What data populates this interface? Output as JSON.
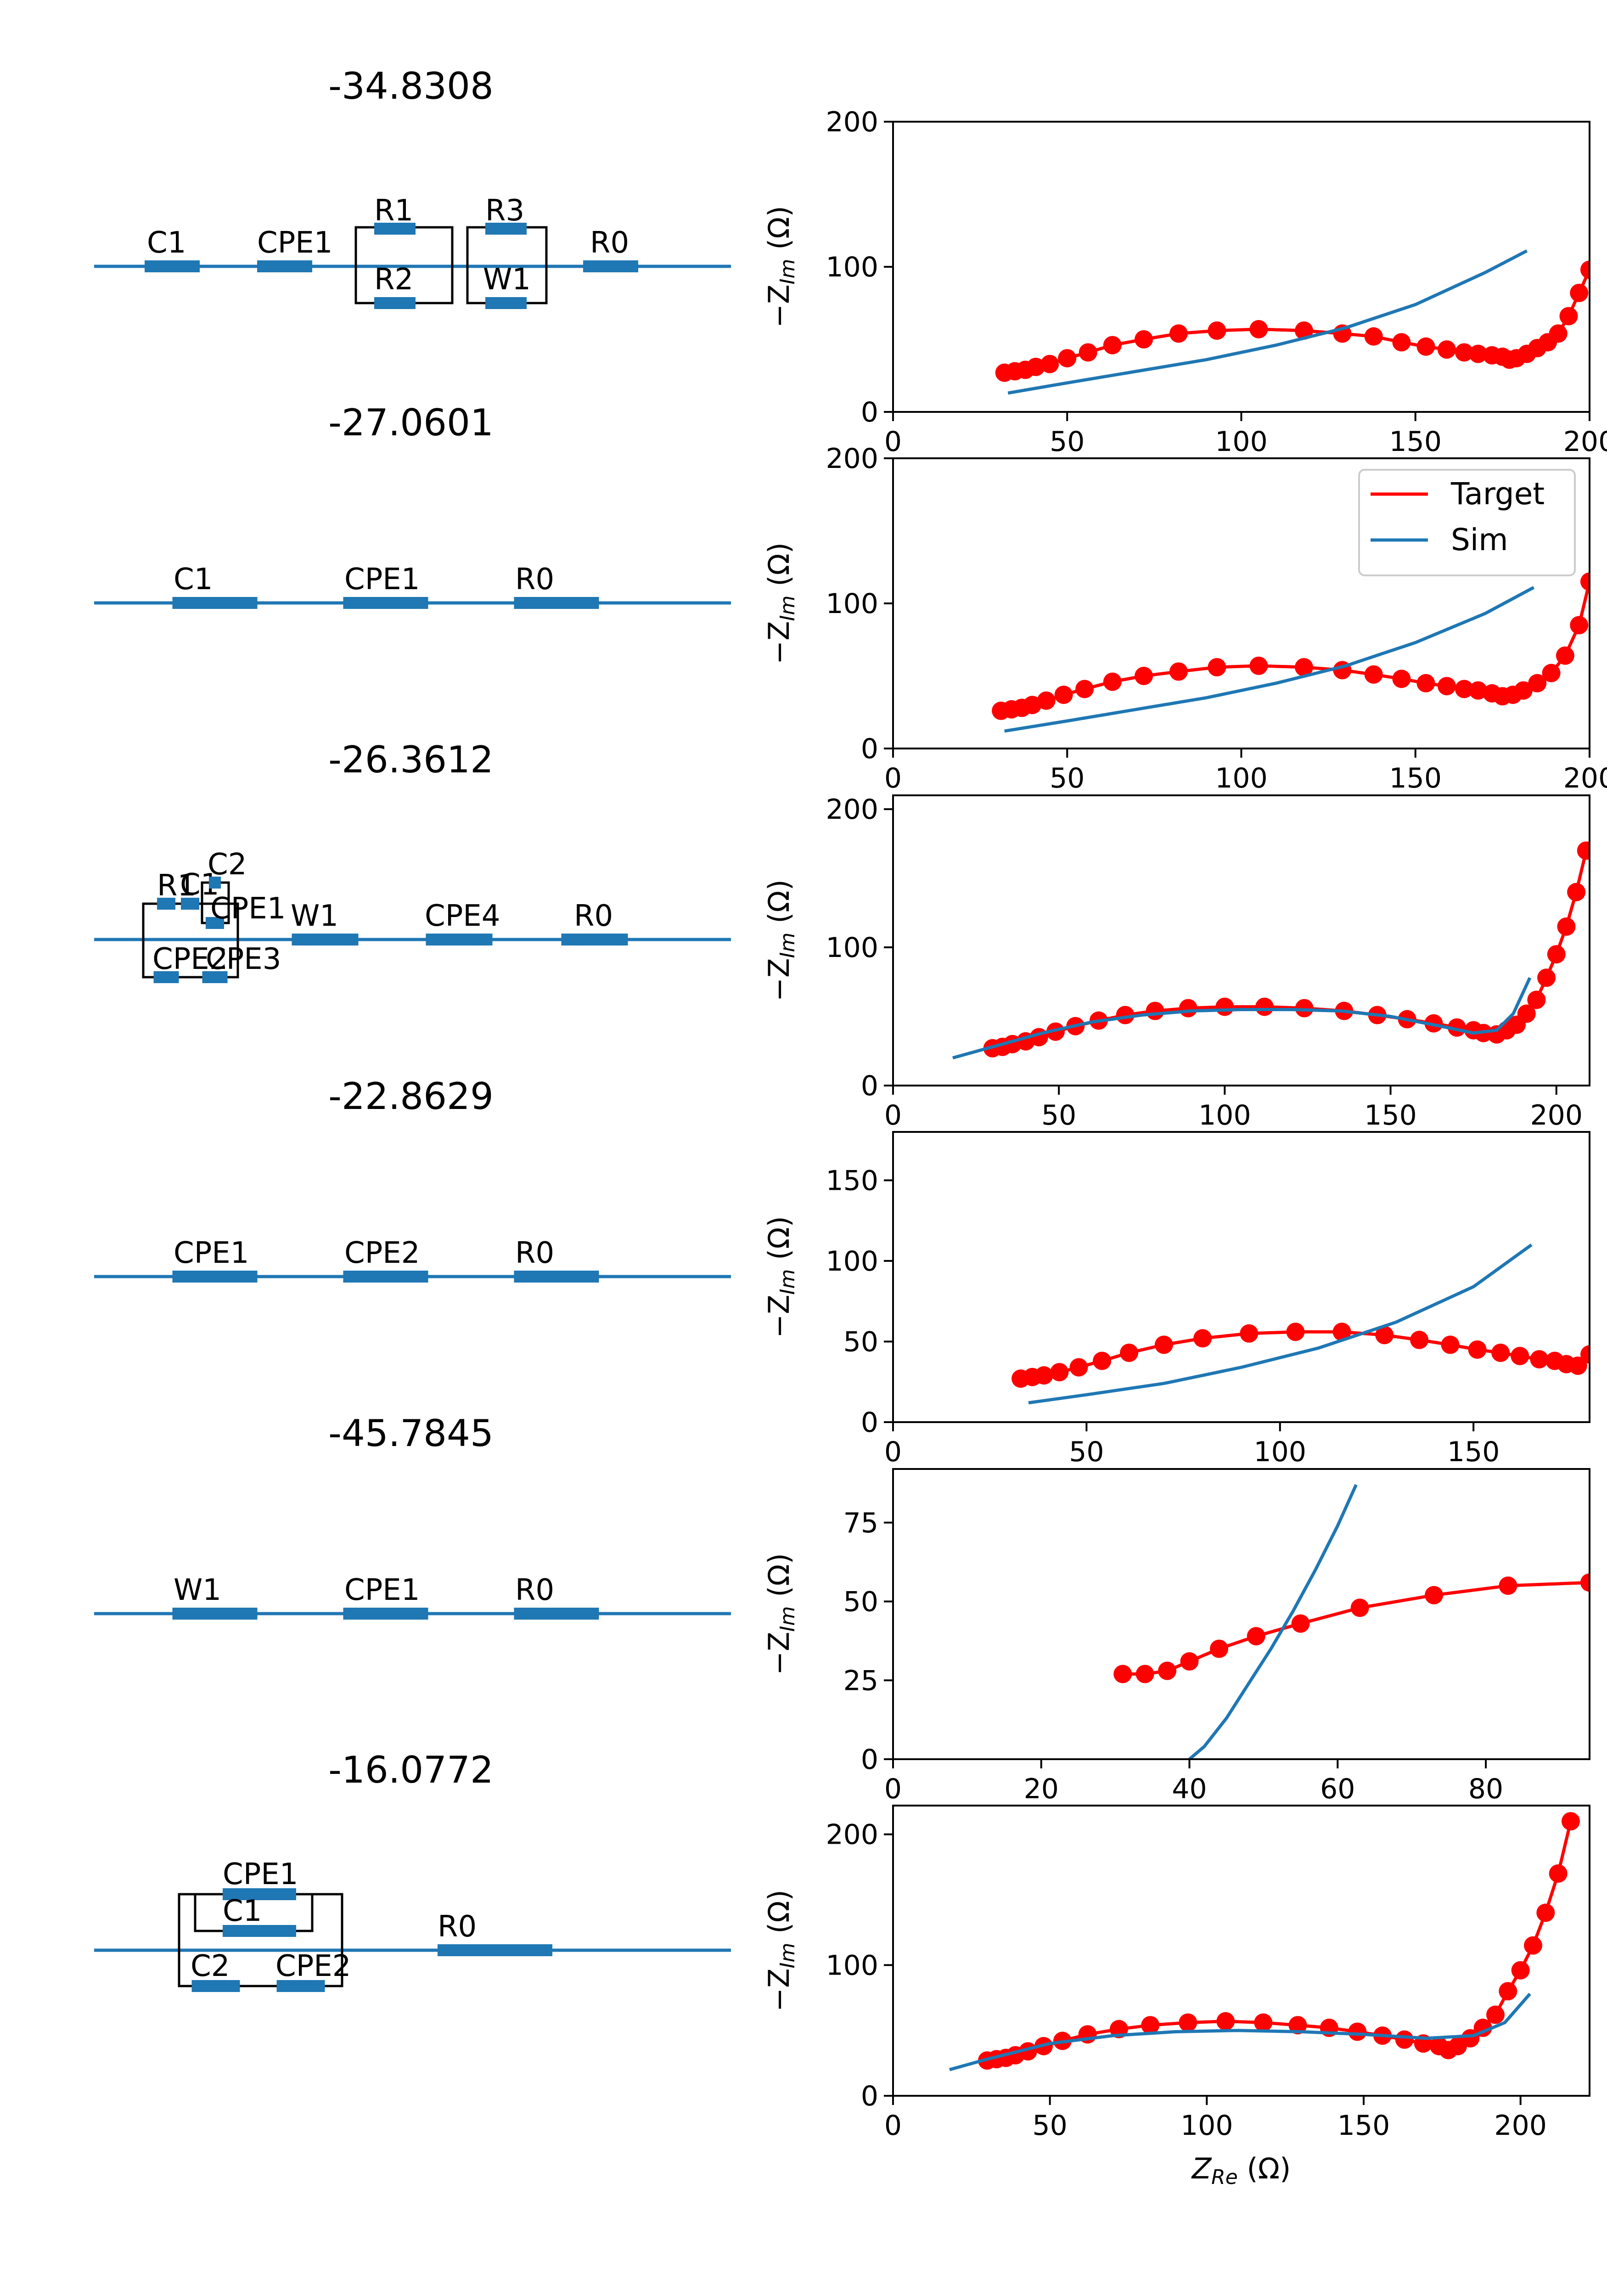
{
  "colors": {
    "target": "#ff0000",
    "sim": "#1f77b4",
    "wire": "#1f77b4",
    "frame": "#000000"
  },
  "chart_data": [
    {
      "type": "line",
      "title": "-34.8308",
      "circuit_labels": [
        "C1",
        "CPE1",
        "R1",
        "R2",
        "R3",
        "W1",
        "R0"
      ],
      "xlim": [
        0,
        200
      ],
      "ylim": [
        0,
        200
      ],
      "xticks": [
        "0",
        "50",
        "100",
        "150",
        "200"
      ],
      "yticks": [
        "0",
        "100",
        "200"
      ],
      "xlabel": "",
      "ylabel": "−Z",
      "series": [
        {
          "name": "Target",
          "markers": true,
          "x": [
            32,
            35,
            38,
            41,
            45,
            50,
            56,
            63,
            72,
            82,
            93,
            105,
            118,
            129,
            138,
            146,
            153,
            159,
            164,
            168,
            172,
            175,
            177,
            179,
            182,
            185,
            188,
            191,
            194,
            197,
            200
          ],
          "y": [
            27,
            28,
            29,
            31,
            33,
            37,
            41,
            46,
            50,
            54,
            56,
            57,
            56,
            54,
            52,
            48,
            45,
            43,
            41,
            40,
            39,
            38,
            36,
            37,
            40,
            44,
            48,
            54,
            66,
            82,
            98
          ]
        },
        {
          "name": "Sim",
          "markers": false,
          "x": [
            33,
            50,
            70,
            90,
            110,
            130,
            150,
            170,
            182
          ],
          "y": [
            13,
            20,
            28,
            36,
            46,
            58,
            74,
            96,
            111
          ]
        }
      ]
    },
    {
      "type": "line",
      "title": "-27.0601",
      "circuit_labels": [
        "C1",
        "CPE1",
        "R0"
      ],
      "xlim": [
        0,
        200
      ],
      "ylim": [
        0,
        200
      ],
      "xticks": [
        "0",
        "50",
        "100",
        "150",
        "200"
      ],
      "yticks": [
        "0",
        "100",
        "200"
      ],
      "xlabel": "",
      "ylabel": "−Z",
      "legend": {
        "placement": "top-right",
        "entries": [
          "Target",
          "Sim"
        ]
      },
      "series": [
        {
          "name": "Target",
          "markers": true,
          "x": [
            31,
            34,
            37,
            40,
            44,
            49,
            55,
            63,
            72,
            82,
            93,
            105,
            118,
            129,
            138,
            146,
            153,
            159,
            164,
            168,
            172,
            175,
            178,
            181,
            185,
            189,
            193,
            197,
            200
          ],
          "y": [
            26,
            27,
            28,
            30,
            33,
            37,
            41,
            46,
            50,
            53,
            56,
            57,
            56,
            54,
            51,
            48,
            45,
            43,
            41,
            40,
            38,
            36,
            37,
            40,
            45,
            52,
            64,
            85,
            115
          ]
        },
        {
          "name": "Sim",
          "markers": false,
          "x": [
            32,
            50,
            70,
            90,
            110,
            130,
            150,
            170,
            184
          ],
          "y": [
            12,
            19,
            27,
            35,
            45,
            57,
            73,
            93,
            111
          ]
        }
      ]
    },
    {
      "type": "line",
      "title": "-26.3612",
      "circuit_labels": [
        "R1",
        "C1",
        "C2",
        "CPE1",
        "CPE2",
        "CPE3",
        "W1",
        "CPE4",
        "R0"
      ],
      "xlim": [
        0,
        210
      ],
      "ylim": [
        0,
        210
      ],
      "xticks": [
        "0",
        "50",
        "100",
        "150",
        "200"
      ],
      "yticks": [
        "0",
        "100",
        "200"
      ],
      "xlabel": "",
      "ylabel": "−Z",
      "series": [
        {
          "name": "Target",
          "markers": true,
          "x": [
            30,
            33,
            36,
            40,
            44,
            49,
            55,
            62,
            70,
            79,
            89,
            100,
            112,
            124,
            136,
            146,
            155,
            163,
            170,
            175,
            178,
            182,
            185,
            188,
            191,
            194,
            197,
            200,
            203,
            206,
            209
          ],
          "y": [
            27,
            28,
            30,
            32,
            35,
            39,
            43,
            47,
            51,
            54,
            56,
            57,
            57,
            56,
            54,
            51,
            48,
            45,
            42,
            40,
            38,
            37,
            40,
            44,
            52,
            62,
            78,
            95,
            115,
            140,
            170
          ]
        },
        {
          "name": "Sim",
          "markers": false,
          "x": [
            18,
            30,
            45,
            60,
            75,
            90,
            105,
            120,
            135,
            150,
            165,
            175,
            182,
            187,
            192
          ],
          "y": [
            20,
            28,
            38,
            46,
            51,
            54,
            55,
            55,
            54,
            50,
            43,
            38,
            40,
            52,
            78
          ]
        }
      ]
    },
    {
      "type": "line",
      "title": "-22.8629",
      "circuit_labels": [
        "CPE1",
        "CPE2",
        "R0"
      ],
      "xlim": [
        0,
        180
      ],
      "ylim": [
        0,
        180
      ],
      "xticks": [
        "0",
        "50",
        "100",
        "150"
      ],
      "yticks": [
        "0",
        "50",
        "100",
        "150"
      ],
      "xlabel": "",
      "ylabel": "−Z",
      "series": [
        {
          "name": "Target",
          "markers": true,
          "x": [
            33,
            36,
            39,
            43,
            48,
            54,
            61,
            70,
            80,
            92,
            104,
            116,
            127,
            136,
            144,
            151,
            157,
            162,
            167,
            171,
            174,
            177,
            180
          ],
          "y": [
            27,
            28,
            29,
            31,
            34,
            38,
            43,
            48,
            52,
            55,
            56,
            56,
            54,
            51,
            48,
            45,
            43,
            41,
            39,
            38,
            36,
            35,
            42
          ]
        },
        {
          "name": "Sim",
          "markers": false,
          "x": [
            35,
            50,
            70,
            90,
            110,
            130,
            150,
            165
          ],
          "y": [
            12,
            17,
            24,
            34,
            46,
            62,
            84,
            110
          ]
        }
      ]
    },
    {
      "type": "line",
      "title": "-45.7845",
      "circuit_labels": [
        "W1",
        "CPE1",
        "R0"
      ],
      "xlim": [
        0,
        94
      ],
      "ylim": [
        0,
        92
      ],
      "xticks": [
        "0",
        "20",
        "40",
        "60",
        "80"
      ],
      "yticks": [
        "0",
        "25",
        "50",
        "75"
      ],
      "xlabel": "",
      "ylabel": "−Z",
      "series": [
        {
          "name": "Target",
          "markers": true,
          "x": [
            31,
            34,
            37,
            40,
            44,
            49,
            55,
            63,
            73,
            83,
            94
          ],
          "y": [
            27,
            27,
            28,
            31,
            35,
            39,
            43,
            48,
            52,
            55,
            56
          ]
        },
        {
          "name": "Sim",
          "markers": false,
          "x": [
            40,
            42,
            45,
            48,
            51,
            54,
            57,
            60,
            62.5
          ],
          "y": [
            0,
            4,
            13,
            24,
            35,
            47,
            60,
            74,
            87
          ]
        }
      ]
    },
    {
      "type": "line",
      "title": "-16.0772",
      "circuit_labels": [
        "CPE1",
        "C1",
        "C2",
        "CPE2",
        "R0"
      ],
      "xlim": [
        0,
        222
      ],
      "ylim": [
        0,
        222
      ],
      "xticks": [
        "0",
        "50",
        "100",
        "150",
        "200"
      ],
      "yticks": [
        "0",
        "100",
        "200"
      ],
      "xlabel": "Z",
      "ylabel": "−Z",
      "series": [
        {
          "name": "Target",
          "markers": true,
          "x": [
            30,
            33,
            36,
            39,
            43,
            48,
            54,
            62,
            72,
            82,
            94,
            106,
            118,
            129,
            139,
            148,
            156,
            163,
            169,
            174,
            177,
            180,
            184,
            188,
            192,
            196,
            200,
            204,
            208,
            212,
            216
          ],
          "y": [
            27,
            28,
            29,
            31,
            34,
            38,
            42,
            47,
            51,
            54,
            56,
            57,
            56,
            54,
            52,
            49,
            46,
            43,
            40,
            38,
            35,
            38,
            44,
            52,
            62,
            80,
            96,
            115,
            140,
            170,
            210
          ]
        },
        {
          "name": "Sim",
          "markers": false,
          "x": [
            18,
            30,
            50,
            70,
            90,
            110,
            130,
            150,
            170,
            185,
            195,
            203
          ],
          "y": [
            20,
            28,
            40,
            46,
            49,
            50,
            49,
            47,
            44,
            46,
            56,
            78
          ]
        }
      ]
    }
  ]
}
